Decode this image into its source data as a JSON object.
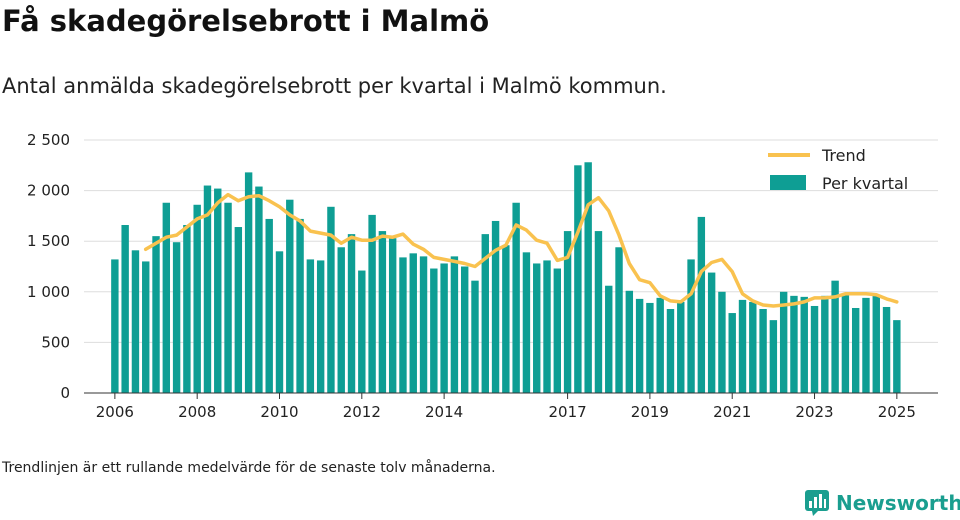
{
  "header": {
    "title": "Få skadegörelsebrott i Malmö",
    "subtitle": "Antal anmälda skadegörelsebrott per kvartal i Malmö kommun."
  },
  "footer": {
    "note": "Trendlinjen är ett rullande medelvärde för de senaste tolv månaderna.",
    "brand": "Newsworthy"
  },
  "colors": {
    "bar": "#0e9e94",
    "trend": "#f9c24f",
    "grid": "#dddddd",
    "brand": "#1a9e8f"
  },
  "chart_data": {
    "type": "bar",
    "yticks": [
      0,
      500,
      1000,
      1500,
      2000,
      2500
    ],
    "ytick_labels": [
      "0",
      "500",
      "1 000",
      "1 500",
      "2 000",
      "2 500"
    ],
    "ylim": [
      0,
      2500
    ],
    "xlim": [
      2005.25,
      2026.0
    ],
    "xticks": [
      2006,
      2008,
      2010,
      2012,
      2014,
      2017,
      2019,
      2021,
      2023,
      2025
    ],
    "xtick_labels": [
      "2006",
      "2008",
      "2010",
      "2012",
      "2014",
      "2017",
      "2019",
      "2021",
      "2023",
      "2025"
    ],
    "grid": true,
    "legend": {
      "position": "top-right"
    },
    "series": [
      {
        "name": "Per kvartal",
        "kind": "bar",
        "x": [
          2006.0,
          2006.25,
          2006.5,
          2006.75,
          2007.0,
          2007.25,
          2007.5,
          2007.75,
          2008.0,
          2008.25,
          2008.5,
          2008.75,
          2009.0,
          2009.25,
          2009.5,
          2009.75,
          2010.0,
          2010.25,
          2010.5,
          2010.75,
          2011.0,
          2011.25,
          2011.5,
          2011.75,
          2012.0,
          2012.25,
          2012.5,
          2012.75,
          2013.0,
          2013.25,
          2013.5,
          2013.75,
          2014.0,
          2014.25,
          2014.5,
          2014.75,
          2015.0,
          2015.25,
          2015.5,
          2015.75,
          2016.0,
          2016.25,
          2016.5,
          2016.75,
          2017.0,
          2017.25,
          2017.5,
          2017.75,
          2018.0,
          2018.25,
          2018.5,
          2018.75,
          2019.0,
          2019.25,
          2019.5,
          2019.75,
          2020.0,
          2020.25,
          2020.5,
          2020.75,
          2021.0,
          2021.25,
          2021.5,
          2021.75,
          2022.0,
          2022.25,
          2022.5,
          2022.75,
          2023.0,
          2023.25,
          2023.5,
          2023.75,
          2024.0,
          2024.25,
          2024.5,
          2024.75,
          2025.0
        ],
        "values": [
          1320,
          1660,
          1410,
          1300,
          1550,
          1880,
          1490,
          1660,
          1860,
          2050,
          2020,
          1880,
          1640,
          2180,
          2040,
          1720,
          1400,
          1910,
          1720,
          1320,
          1310,
          1840,
          1440,
          1570,
          1210,
          1760,
          1600,
          1530,
          1340,
          1380,
          1350,
          1230,
          1280,
          1350,
          1250,
          1110,
          1570,
          1700,
          1460,
          1880,
          1390,
          1280,
          1310,
          1230,
          1600,
          2250,
          2280,
          1600,
          1060,
          1440,
          1010,
          930,
          890,
          940,
          830,
          900,
          1320,
          1740,
          1190,
          1000,
          790,
          920,
          900,
          830,
          720,
          1000,
          960,
          950,
          860,
          960,
          1110,
          970,
          840,
          940,
          970,
          850,
          720
        ]
      },
      {
        "name": "Trend",
        "kind": "line",
        "x": [
          2006.75,
          2007.0,
          2007.25,
          2007.5,
          2007.75,
          2008.0,
          2008.25,
          2008.5,
          2008.75,
          2009.0,
          2009.25,
          2009.5,
          2009.75,
          2010.0,
          2010.25,
          2010.5,
          2010.75,
          2011.0,
          2011.25,
          2011.5,
          2011.75,
          2012.0,
          2012.25,
          2012.5,
          2012.75,
          2013.0,
          2013.25,
          2013.5,
          2013.75,
          2014.0,
          2014.25,
          2014.5,
          2014.75,
          2015.0,
          2015.25,
          2015.5,
          2015.75,
          2016.0,
          2016.25,
          2016.5,
          2016.75,
          2017.0,
          2017.25,
          2017.5,
          2017.75,
          2018.0,
          2018.25,
          2018.5,
          2018.75,
          2019.0,
          2019.25,
          2019.5,
          2019.75,
          2020.0,
          2020.25,
          2020.5,
          2020.75,
          2021.0,
          2021.25,
          2021.5,
          2021.75,
          2022.0,
          2022.25,
          2022.5,
          2022.75,
          2023.0,
          2023.25,
          2023.5,
          2023.75,
          2024.0,
          2024.25,
          2024.5,
          2024.75,
          2025.0
        ],
        "values": [
          1420,
          1480,
          1540,
          1560,
          1640,
          1720,
          1760,
          1880,
          1960,
          1900,
          1940,
          1950,
          1900,
          1840,
          1760,
          1700,
          1600,
          1580,
          1560,
          1480,
          1540,
          1510,
          1510,
          1550,
          1540,
          1570,
          1470,
          1420,
          1340,
          1320,
          1300,
          1280,
          1250,
          1330,
          1410,
          1460,
          1660,
          1610,
          1510,
          1480,
          1310,
          1340,
          1590,
          1860,
          1930,
          1800,
          1560,
          1280,
          1120,
          1090,
          960,
          910,
          900,
          980,
          1200,
          1290,
          1320,
          1200,
          980,
          910,
          870,
          860,
          870,
          880,
          900,
          940,
          940,
          950,
          980,
          980,
          980,
          970,
          930,
          900
        ]
      }
    ]
  }
}
